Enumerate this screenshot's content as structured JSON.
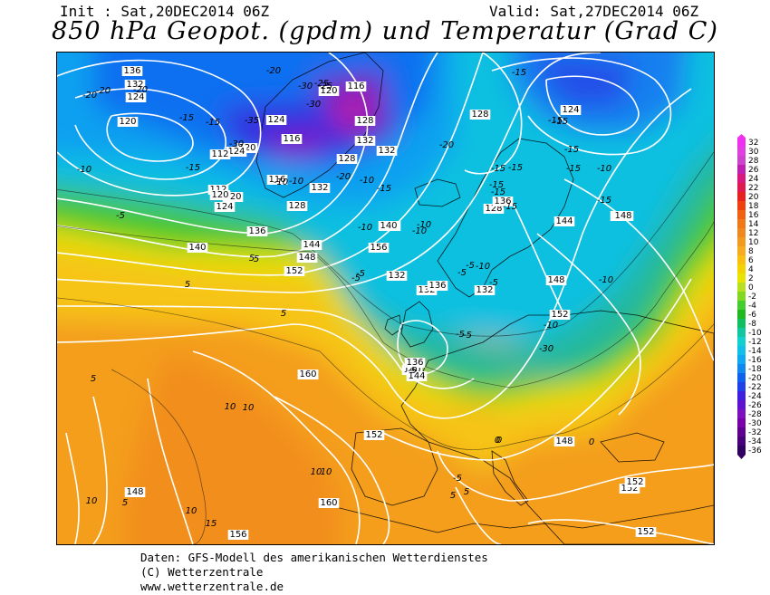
{
  "header": {
    "init": "Init : Sat,20DEC2014 06Z",
    "valid": "Valid: Sat,27DEC2014 06Z",
    "title": "850 hPa Geopot. (gpdm) und Temperatur (Grad C)"
  },
  "legend": {
    "values": [
      "32",
      "30",
      "28",
      "26",
      "24",
      "22",
      "20",
      "18",
      "16",
      "14",
      "12",
      "10",
      "8",
      "6",
      "4",
      "2",
      "0",
      "-2",
      "-4",
      "-6",
      "-8",
      "-10",
      "-12",
      "-14",
      "-16",
      "-18",
      "-20",
      "-22",
      "-24",
      "-26",
      "-28",
      "-30",
      "-32",
      "-34",
      "-36"
    ],
    "colors": [
      "#f030f0",
      "#e040e0",
      "#cc44cc",
      "#c020b0",
      "#d81880",
      "#e01850",
      "#e82020",
      "#f04010",
      "#f06010",
      "#f07818",
      "#f08820",
      "#f09a20",
      "#f7ac20",
      "#f8c010",
      "#f4d400",
      "#e8e400",
      "#b8e020",
      "#80d820",
      "#44cc30",
      "#20b820",
      "#10c060",
      "#10c8a0",
      "#10d0d0",
      "#10c0e8",
      "#10a8f0",
      "#1088f0",
      "#1060f0",
      "#2040e8",
      "#4020e0",
      "#6010d0",
      "#7c10c0",
      "#7800a8",
      "#600090",
      "#480078",
      "#300060"
    ]
  },
  "map": {
    "geopotential_labels": [
      "136",
      "132",
      "124",
      "120",
      "116",
      "120",
      "124",
      "128",
      "132",
      "116",
      "120",
      "124",
      "112",
      "112",
      "120",
      "124",
      "128",
      "132",
      "136",
      "140",
      "144",
      "148",
      "152",
      "156",
      "160",
      "160",
      "148",
      "156",
      "152",
      "152",
      "152",
      "128",
      "128",
      "136",
      "132",
      "136",
      "140",
      "144",
      "144",
      "148",
      "148",
      "152",
      "124",
      "132",
      "140",
      "144",
      "136",
      "132",
      "148",
      "136",
      "152",
      "160",
      "132",
      "128",
      "120",
      "116"
    ],
    "temperature_labels": [
      "-20",
      "-20",
      "-15",
      "-15",
      "-15",
      "-20",
      "-25",
      "-25",
      "-30",
      "-30",
      "-35",
      "-30",
      "-20",
      "-10",
      "-10",
      "-5",
      "-10",
      "-15",
      "-15",
      "-20",
      "-15",
      "-15",
      "-15",
      "-15",
      "-10",
      "-10",
      "-5",
      "-5",
      "-5",
      "-5",
      "-5",
      "-10",
      "-10",
      "-5",
      "-5",
      "0",
      "0",
      "5",
      "5",
      "5",
      "5",
      "5",
      "10",
      "10",
      "10",
      "10",
      "10",
      "10",
      "15",
      "5",
      "5",
      "5",
      "0",
      "-5",
      "-10",
      "-10",
      "-15",
      "-20",
      "-15",
      "-15",
      "-15",
      "-15",
      "-10",
      "-5",
      "-30",
      "-15",
      "-10"
    ]
  },
  "footer": {
    "line1": "Daten: GFS-Modell des amerikanischen Wetterdienstes",
    "line2": "(C) Wetterzentrale",
    "line3": "www.wetterzentrale.de"
  }
}
